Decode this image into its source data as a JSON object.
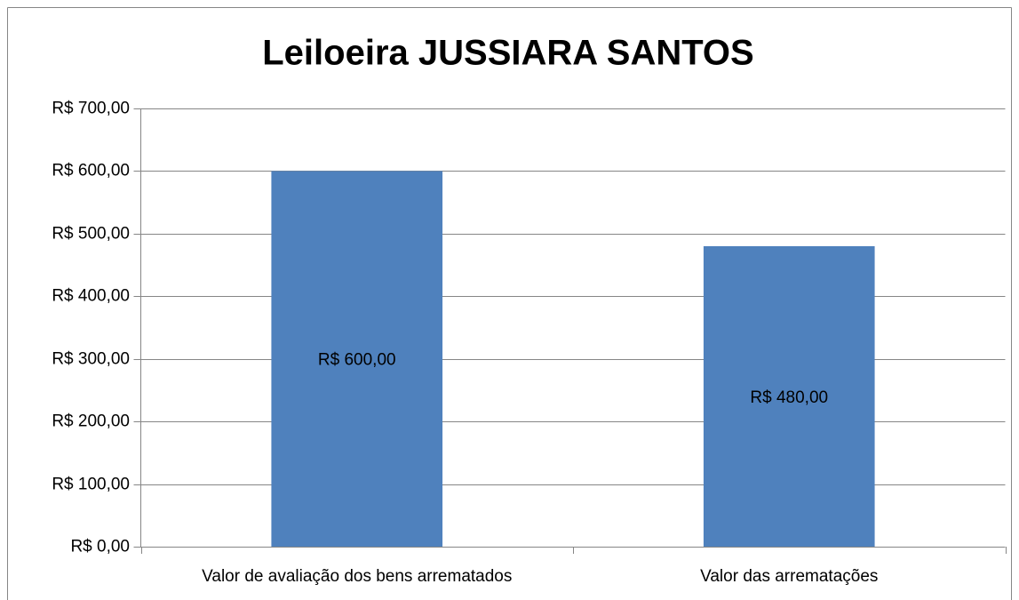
{
  "chart_data": {
    "type": "bar",
    "title": "Leiloeira JUSSIARA SANTOS",
    "categories": [
      "Valor de avaliação dos bens arrematados",
      "Valor das arrematações"
    ],
    "values": [
      600,
      480
    ],
    "value_labels": [
      "R$ 600,00",
      "R$ 480,00"
    ],
    "color": "#4f81bd",
    "ylim": [
      0,
      700
    ],
    "yticks": [
      {
        "value": 0,
        "label": "R$ 0,00"
      },
      {
        "value": 100,
        "label": "R$ 100,00"
      },
      {
        "value": 200,
        "label": "R$ 200,00"
      },
      {
        "value": 300,
        "label": "R$ 300,00"
      },
      {
        "value": 400,
        "label": "R$ 400,00"
      },
      {
        "value": 500,
        "label": "R$ 500,00"
      },
      {
        "value": 600,
        "label": "R$ 600,00"
      },
      {
        "value": 700,
        "label": "R$ 700,00"
      }
    ],
    "grid": true
  }
}
